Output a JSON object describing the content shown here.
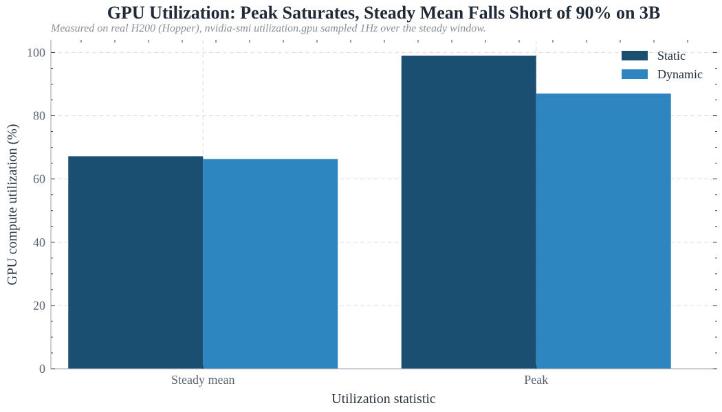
{
  "chart_data": {
    "type": "bar",
    "title": "GPU Utilization: Peak Saturates, Steady Mean Falls Short of 90% on 3B",
    "subtitle": "Measured on real H200 (Hopper), nvidia-smi utilization.gpu sampled 1Hz over the steady window.",
    "xlabel": "Utilization statistic",
    "ylabel": "GPU compute utilization (%)",
    "categories": [
      "Steady mean",
      "Peak"
    ],
    "series": [
      {
        "name": "Static",
        "values": [
          67.2,
          99.0
        ],
        "color": "#1b4f72"
      },
      {
        "name": "Dynamic",
        "values": [
          66.3,
          87.0
        ],
        "color": "#2e86c1"
      }
    ],
    "ylim": [
      0,
      104
    ],
    "yticks": [
      0,
      20,
      40,
      60,
      80,
      100
    ],
    "yticks_minor": [
      5,
      10,
      15,
      25,
      30,
      35,
      45,
      50,
      55,
      65,
      70,
      75,
      85,
      90,
      95
    ],
    "grid": true,
    "legend_position": "top-right"
  }
}
